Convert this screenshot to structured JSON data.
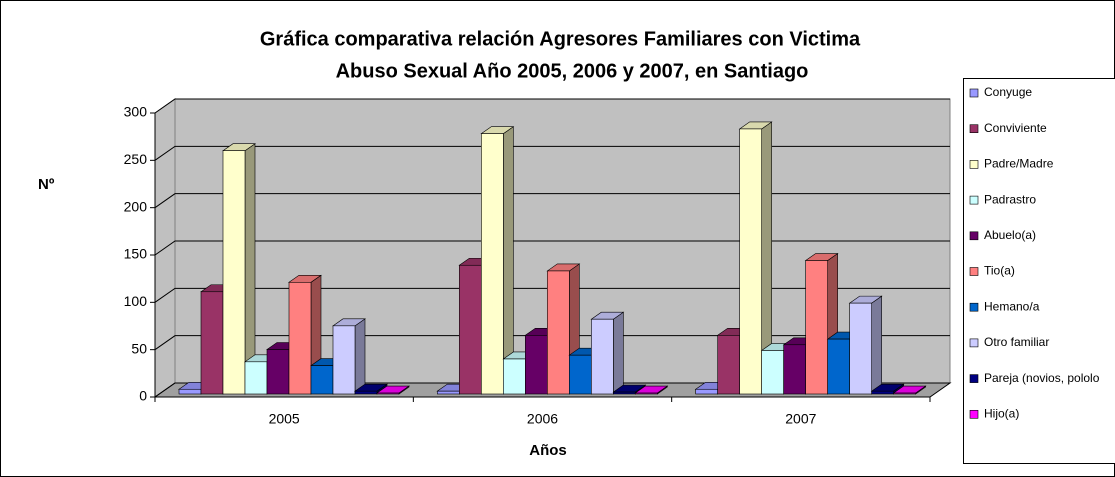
{
  "chart_data": {
    "type": "bar3d",
    "title": [
      "Gráfica comparativa relación Agresores Familiares con Victima",
      "Abuso Sexual Año 2005, 2006 y 2007, en Santiago"
    ],
    "x_label": "Años",
    "y_label": "Nº",
    "categories": [
      "2005",
      "2006",
      "2007"
    ],
    "series": [
      {
        "name": "Conyuge",
        "color": "#9999ff",
        "values": [
          5,
          3,
          5
        ]
      },
      {
        "name": "Conviviente",
        "color": "#993366",
        "values": [
          108,
          136,
          62
        ]
      },
      {
        "name": "Padre/Madre",
        "color": "#ffffcc",
        "values": [
          257,
          275,
          280
        ]
      },
      {
        "name": "Padrastro",
        "color": "#ccffff",
        "values": [
          34,
          37,
          46
        ]
      },
      {
        "name": "Abuelo(a)",
        "color": "#660066",
        "values": [
          47,
          62,
          52
        ]
      },
      {
        "name": "Tio(a)",
        "color": "#ff8080",
        "values": [
          118,
          130,
          141
        ]
      },
      {
        "name": "Hemano/a",
        "color": "#0066cc",
        "values": [
          30,
          41,
          58
        ]
      },
      {
        "name": "Otro familiar",
        "color": "#ccccff",
        "values": [
          72,
          79,
          96
        ]
      },
      {
        "name": "Pareja (novios, pololo",
        "color": "#000080",
        "values": [
          3,
          2,
          3
        ]
      },
      {
        "name": "Hijo(a)",
        "color": "#ff00ff",
        "values": [
          1,
          1,
          1
        ]
      }
    ],
    "ylim": [
      0,
      300
    ],
    "yticks": [
      0,
      50,
      100,
      150,
      200,
      250,
      300
    ],
    "grid": true,
    "legend": "right"
  }
}
